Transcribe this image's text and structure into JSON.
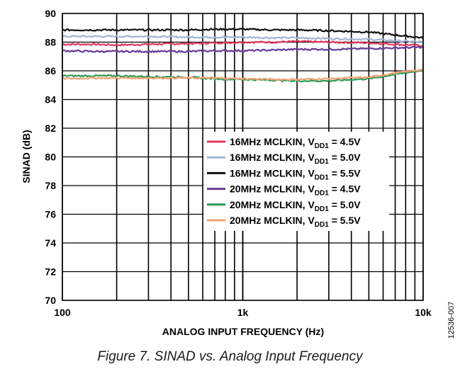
{
  "figure_caption": "Figure 7. SINAD vs. Analog Input Frequency",
  "side_note": "12536-007",
  "chart_data": {
    "type": "line",
    "xlabel": "ANALOG INPUT FREQUENCY (Hz)",
    "ylabel": "SINAD (dB)",
    "x_scale": "log",
    "xlim": [
      100,
      10000
    ],
    "ylim": [
      70,
      90
    ],
    "x_ticks": [
      {
        "value": 100,
        "label": "100"
      },
      {
        "value": 1000,
        "label": "1k"
      },
      {
        "value": 10000,
        "label": "10k"
      }
    ],
    "y_ticks": [
      70,
      72,
      74,
      76,
      78,
      80,
      82,
      84,
      86,
      88,
      90
    ],
    "grid": true,
    "legend_position": "center-right",
    "series": [
      {
        "legend_main": "16MHz MCLKIN, V",
        "legend_sub": "DD1",
        "legend_tail": " = 4.5V",
        "color": "#e0375c",
        "x": [
          100,
          150,
          200,
          300,
          500,
          700,
          1000,
          1500,
          2000,
          3000,
          5000,
          7000,
          10000
        ],
        "y": [
          87.85,
          87.85,
          87.8,
          87.85,
          87.9,
          87.95,
          88.0,
          88.0,
          88.05,
          88.0,
          87.95,
          87.85,
          87.75
        ]
      },
      {
        "legend_main": "16MHz MCLKIN, V",
        "legend_sub": "DD1",
        "legend_tail": " = 5.0V",
        "color": "#a4b4d8",
        "x": [
          100,
          150,
          200,
          300,
          500,
          700,
          1000,
          1500,
          2000,
          3000,
          5000,
          7000,
          10000
        ],
        "y": [
          88.4,
          88.4,
          88.4,
          88.4,
          88.35,
          88.35,
          88.35,
          88.3,
          88.3,
          88.25,
          88.2,
          88.1,
          88.0
        ]
      },
      {
        "legend_main": "16MHz MCLKIN, V",
        "legend_sub": "DD1",
        "legend_tail": " = 5.5V",
        "color": "#111111",
        "x": [
          100,
          150,
          200,
          300,
          500,
          700,
          1000,
          1500,
          2000,
          3000,
          5000,
          7000,
          10000
        ],
        "y": [
          88.85,
          88.85,
          88.85,
          88.85,
          88.85,
          88.9,
          88.9,
          88.85,
          88.85,
          88.8,
          88.7,
          88.5,
          88.3
        ]
      },
      {
        "legend_main": "20MHz MCLKIN, V",
        "legend_sub": "DD1",
        "legend_tail": " = 4.5V",
        "color": "#6a3a9a",
        "x": [
          100,
          150,
          200,
          300,
          500,
          700,
          1000,
          1500,
          2000,
          3000,
          5000,
          7000,
          10000
        ],
        "y": [
          87.4,
          87.35,
          87.35,
          87.35,
          87.35,
          87.4,
          87.4,
          87.45,
          87.5,
          87.5,
          87.55,
          87.6,
          87.65
        ]
      },
      {
        "legend_main": "20MHz MCLKIN, V",
        "legend_sub": "DD1",
        "legend_tail": " = 5.0V",
        "color": "#2e9a58",
        "x": [
          100,
          150,
          200,
          300,
          500,
          700,
          1000,
          1500,
          2000,
          3000,
          5000,
          7000,
          10000
        ],
        "y": [
          85.65,
          85.65,
          85.65,
          85.6,
          85.55,
          85.45,
          85.4,
          85.35,
          85.3,
          85.3,
          85.45,
          85.75,
          86.05
        ]
      },
      {
        "legend_main": "20MHz MCLKIN, V",
        "legend_sub": "DD1",
        "legend_tail": " = 5.5V",
        "color": "#f0a274",
        "x": [
          100,
          150,
          200,
          300,
          500,
          700,
          1000,
          1500,
          2000,
          3000,
          5000,
          7000,
          10000
        ],
        "y": [
          85.45,
          85.5,
          85.5,
          85.5,
          85.5,
          85.5,
          85.45,
          85.4,
          85.4,
          85.45,
          85.55,
          85.85,
          86.1
        ]
      }
    ]
  }
}
